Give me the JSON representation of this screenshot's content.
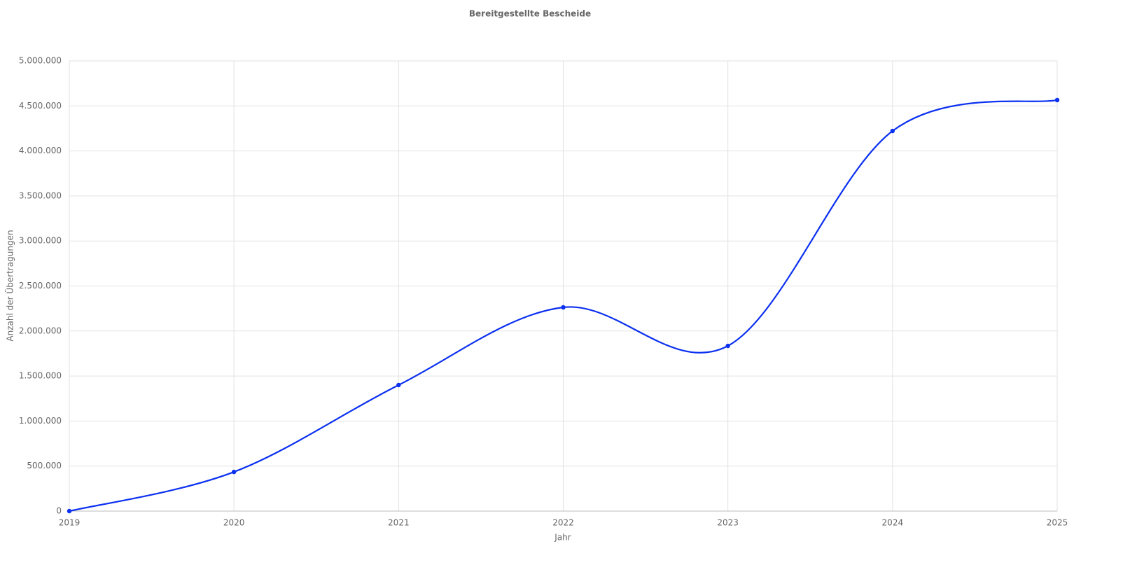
{
  "chart_data": {
    "type": "line",
    "title": "Bereitgestellte Bescheide",
    "x_label": "Jahr",
    "y_label": "Anzahl der Übertragungen",
    "x": [
      2019,
      2020,
      2021,
      2022,
      2023,
      2024,
      2025
    ],
    "series": [
      {
        "name": "Bereitgestellte Bescheide",
        "color": "#0b30f0",
        "values": [
          0,
          435000,
          1400000,
          2263000,
          1835000,
          4222000,
          4565000
        ]
      }
    ],
    "xlim": [
      2019,
      2025
    ],
    "xticks": [
      2019,
      2020,
      2021,
      2022,
      2023,
      2024,
      2025
    ],
    "ylim": [
      0,
      5000000
    ],
    "yticks": [
      0,
      {
        "value": 500000,
        "label": "500.000"
      },
      {
        "value": 1000000,
        "label": "1.000.000"
      },
      {
        "value": 1500000,
        "label": "1.500.000"
      },
      {
        "value": 2000000,
        "label": "2.000.000"
      },
      {
        "value": 2500000,
        "label": "2.500.000"
      },
      {
        "value": 3000000,
        "label": "3.000.000"
      },
      {
        "value": 3500000,
        "label": "3.500.000"
      },
      {
        "value": 4000000,
        "label": "4.000.000"
      },
      {
        "value": 4500000,
        "label": "4.500.000"
      },
      {
        "value": 5000000,
        "label": "5.000.000"
      }
    ],
    "grid": true,
    "smooth": true
  }
}
